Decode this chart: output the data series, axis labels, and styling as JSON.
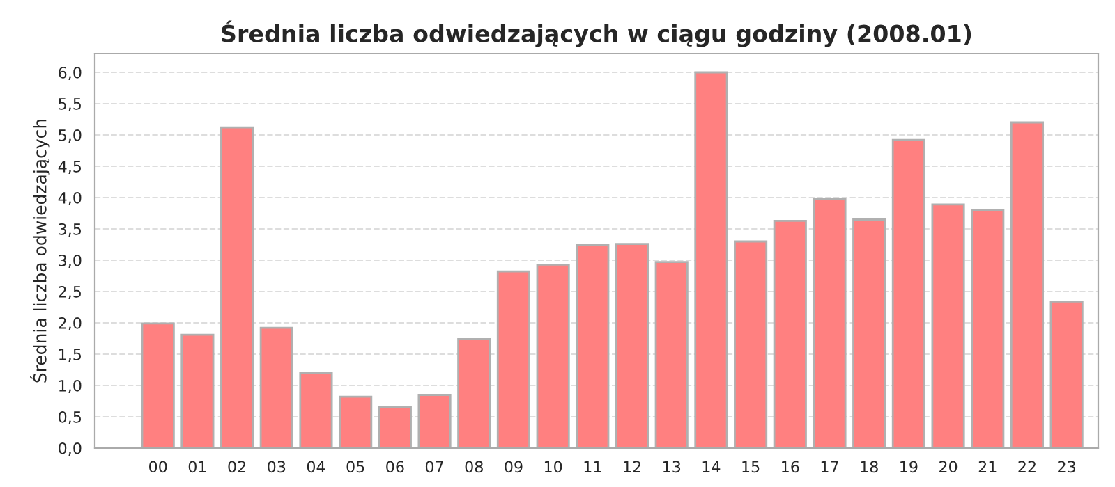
{
  "chart_data": {
    "type": "bar",
    "title": "Średnia liczba odwiedzających w ciągu godziny (2008.01)",
    "ylabel": "Średnia liczba odwiedzających",
    "categories": [
      "00",
      "01",
      "02",
      "03",
      "04",
      "05",
      "06",
      "07",
      "08",
      "09",
      "10",
      "11",
      "12",
      "13",
      "14",
      "15",
      "16",
      "17",
      "18",
      "19",
      "20",
      "21",
      "22",
      "23"
    ],
    "series": [
      {
        "color": "#ff8080",
        "values": [
          1.99,
          1.81,
          5.12,
          1.92,
          1.2,
          0.82,
          0.65,
          0.85,
          1.74,
          2.82,
          2.93,
          3.24,
          3.26,
          2.97,
          6.0,
          3.3,
          3.63,
          3.98,
          3.65,
          4.92,
          3.89,
          3.8,
          5.2,
          2.34
        ]
      }
    ],
    "ylim": [
      0,
      6.3
    ],
    "yticks": [
      {
        "value": 0,
        "label": "0,0"
      },
      {
        "value": 0.5,
        "label": "0,5"
      },
      {
        "value": 1,
        "label": "1,0"
      },
      {
        "value": 1.5,
        "label": "1,5"
      },
      {
        "value": 2,
        "label": "2,0"
      },
      {
        "value": 2.5,
        "label": "2,5"
      },
      {
        "value": 3,
        "label": "3,0"
      },
      {
        "value": 3.5,
        "label": "3,5"
      },
      {
        "value": 4,
        "label": "4,0"
      },
      {
        "value": 4.5,
        "label": "4,5"
      },
      {
        "value": 5,
        "label": "5,0"
      },
      {
        "value": 5.5,
        "label": "5,5"
      },
      {
        "value": 6,
        "label": "6,0"
      }
    ],
    "grid": "y"
  }
}
